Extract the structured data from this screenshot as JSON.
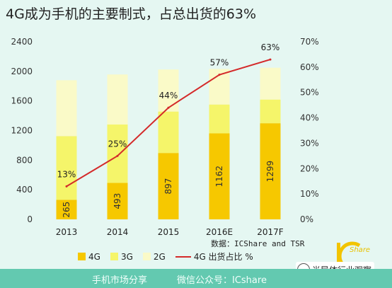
{
  "title": "4G成为手机的主要制式，占总出货的63%",
  "source": "数据：ICShare and TSR",
  "footer": {
    "left": "手机市场分享",
    "right": "微信公众号：ICshare"
  },
  "watermark": "半导体行业观察",
  "logo": {
    "text": "Share",
    "letters": "IC"
  },
  "colors": {
    "4G": "#f6c800",
    "3G": "#f5f56a",
    "2G": "#fafac8",
    "line": "#d42a2a"
  },
  "chart_data": {
    "type": "bar",
    "stacked": true,
    "categories": [
      "2013",
      "2014",
      "2015",
      "2016E",
      "2017F"
    ],
    "series": [
      {
        "name": "4G",
        "values": [
          265,
          493,
          897,
          1162,
          1299
        ],
        "labels": [
          "265",
          "493",
          "897",
          "1162",
          "1299"
        ]
      },
      {
        "name": "3G",
        "values": [
          860,
          790,
          560,
          390,
          320
        ]
      },
      {
        "name": "2G",
        "values": [
          755,
          675,
          568,
          480,
          430
        ]
      }
    ],
    "line_series": {
      "name": "4G 出货占比 %",
      "values": [
        13,
        25,
        44,
        57,
        63
      ],
      "labels": [
        "13%",
        "25%",
        "44%",
        "57%",
        "63%"
      ]
    },
    "y_left": {
      "min": 0,
      "max": 2400,
      "ticks": [
        "0",
        "400",
        "800",
        "1200",
        "1600",
        "2000",
        "2400"
      ]
    },
    "y_right": {
      "min": 0,
      "max": 70,
      "ticks": [
        "0%",
        "10%",
        "20%",
        "30%",
        "40%",
        "50%",
        "60%",
        "70%"
      ]
    },
    "legend": [
      "4G",
      "3G",
      "2G",
      "4G 出货占比 %"
    ]
  }
}
